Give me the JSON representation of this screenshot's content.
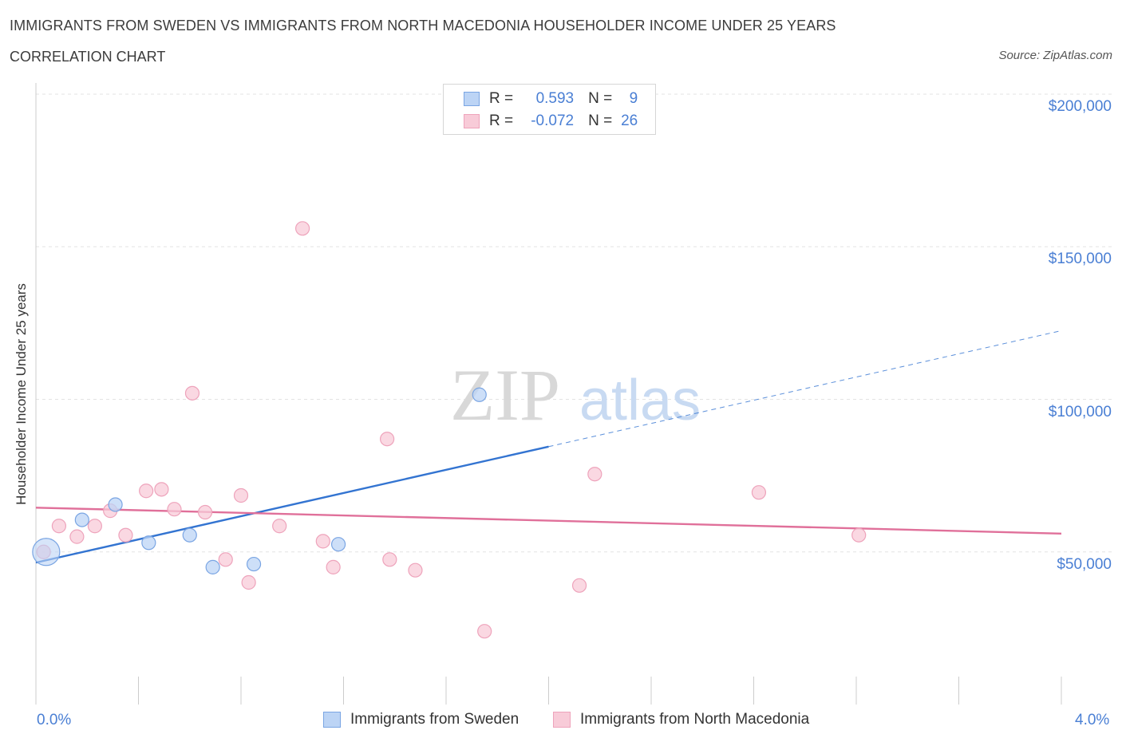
{
  "title": "IMMIGRANTS FROM SWEDEN VS IMMIGRANTS FROM NORTH MACEDONIA HOUSEHOLDER INCOME UNDER 25 YEARS",
  "subtitle": "CORRELATION CHART",
  "source": "Source: ZipAtlas.com",
  "watermark": {
    "zip": "ZIP",
    "atlas": "atlas"
  },
  "legend": {
    "rows": [
      {
        "r_label": "R =",
        "r_value": "0.593",
        "n_label": "N =",
        "n_value": "9"
      },
      {
        "r_label": "R =",
        "r_value": "-0.072",
        "n_label": "N =",
        "n_value": "26"
      }
    ]
  },
  "bottom_legend": {
    "sweden": "Immigrants from Sweden",
    "macedonia": "Immigrants from North Macedonia"
  },
  "axis_text": {
    "x_min": "0.0%",
    "x_max": "4.0%"
  },
  "colors": {
    "sweden_fill": "#bcd4f5",
    "sweden_stroke": "#7aa5e3",
    "sweden_line": "#3374d1",
    "macedonia_fill": "#f8cbd8",
    "macedonia_stroke": "#eea3bb",
    "macedonia_line": "#e0709a",
    "grid": "#e3e3e3",
    "tick_text": "#4a7fd4"
  },
  "chart_data": {
    "type": "scatter",
    "xlabel": "",
    "ylabel": "Householder Income Under 25 years",
    "xlim": [
      0,
      4.0
    ],
    "ylim": [
      0,
      200000
    ],
    "y_ticks": [
      {
        "value": 50000,
        "label": "$50,000"
      },
      {
        "value": 100000,
        "label": "$100,000"
      },
      {
        "value": 150000,
        "label": "$150,000"
      },
      {
        "value": 200000,
        "label": "$200,000"
      }
    ],
    "series": [
      {
        "name": "Immigrants from Sweden",
        "R": 0.593,
        "N": 9,
        "points": [
          {
            "x": 0.04,
            "y": 50000,
            "big": true
          },
          {
            "x": 0.18,
            "y": 60500
          },
          {
            "x": 0.31,
            "y": 65500
          },
          {
            "x": 0.44,
            "y": 53000
          },
          {
            "x": 0.6,
            "y": 55500
          },
          {
            "x": 0.69,
            "y": 45000
          },
          {
            "x": 0.85,
            "y": 46000
          },
          {
            "x": 1.18,
            "y": 52500
          },
          {
            "x": 1.73,
            "y": 101500
          }
        ],
        "trend": {
          "x0": 0.0,
          "y0": 46500,
          "x1": 2.0,
          "y1": 84500,
          "x_end": 4.0,
          "y_end": 122500
        }
      },
      {
        "name": "Immigrants from North Macedonia",
        "R": -0.072,
        "N": 26,
        "points": [
          {
            "x": 0.03,
            "y": 50000
          },
          {
            "x": 0.09,
            "y": 58500
          },
          {
            "x": 0.16,
            "y": 55000
          },
          {
            "x": 0.23,
            "y": 58500
          },
          {
            "x": 0.29,
            "y": 63500
          },
          {
            "x": 0.35,
            "y": 55500
          },
          {
            "x": 0.43,
            "y": 70000
          },
          {
            "x": 0.49,
            "y": 70500
          },
          {
            "x": 0.54,
            "y": 64000
          },
          {
            "x": 0.61,
            "y": 102000
          },
          {
            "x": 0.66,
            "y": 63000
          },
          {
            "x": 0.74,
            "y": 47500
          },
          {
            "x": 0.8,
            "y": 68500
          },
          {
            "x": 0.83,
            "y": 40000
          },
          {
            "x": 0.95,
            "y": 58500
          },
          {
            "x": 1.04,
            "y": 156000
          },
          {
            "x": 1.12,
            "y": 53500
          },
          {
            "x": 1.16,
            "y": 45000
          },
          {
            "x": 1.37,
            "y": 87000
          },
          {
            "x": 1.38,
            "y": 47500
          },
          {
            "x": 1.48,
            "y": 44000
          },
          {
            "x": 1.75,
            "y": 24000
          },
          {
            "x": 2.12,
            "y": 39000
          },
          {
            "x": 2.18,
            "y": 75500
          },
          {
            "x": 2.82,
            "y": 69500
          },
          {
            "x": 3.21,
            "y": 55500
          }
        ],
        "trend": {
          "x0": 0.0,
          "y0": 64500,
          "x1": 4.0,
          "y1": 56000
        }
      }
    ]
  }
}
